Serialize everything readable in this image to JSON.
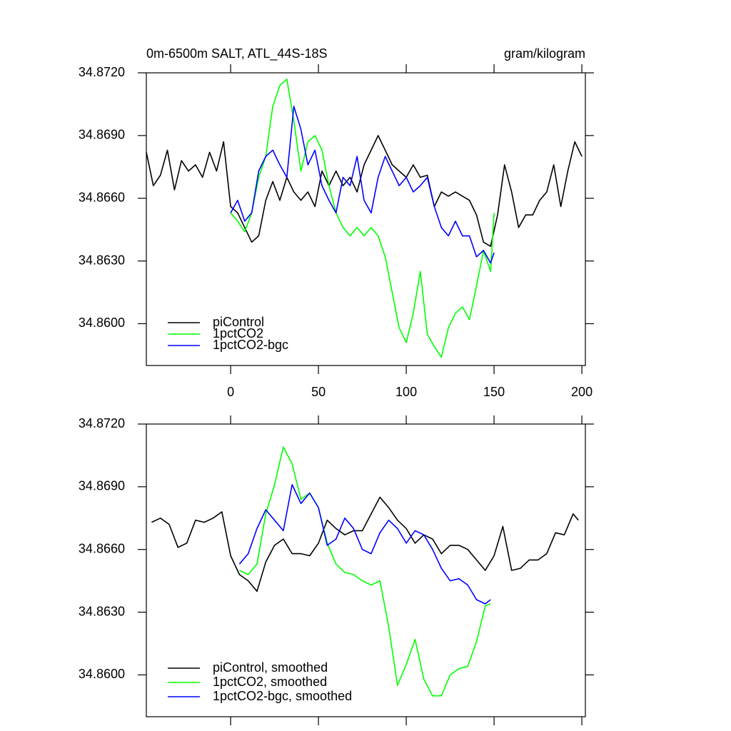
{
  "chart_data": [
    {
      "type": "line",
      "title": "0m-6500m SALT, ATL_44S-18S",
      "units": "gram/kilogram",
      "xlim": [
        -48,
        202
      ],
      "xticks": [
        0,
        50,
        100,
        150,
        200
      ],
      "ylim": [
        34.858,
        34.872
      ],
      "yticks": [
        {
          "value": 34.872,
          "label": "34.8720"
        },
        {
          "value": 34.869,
          "label": "34.8690"
        },
        {
          "value": 34.866,
          "label": "34.8660"
        },
        {
          "value": 34.863,
          "label": "34.8630"
        },
        {
          "value": 34.86,
          "label": "34.8600"
        }
      ],
      "legend": "lower left",
      "series": [
        {
          "name": "piControl",
          "color": "#000000",
          "x": [
            -48,
            -44,
            -40,
            -36,
            -32,
            -28,
            -24,
            -20,
            -16,
            -12,
            -8,
            -4,
            0,
            4,
            8,
            12,
            16,
            20,
            24,
            28,
            32,
            36,
            40,
            44,
            48,
            52,
            56,
            60,
            64,
            68,
            72,
            76,
            80,
            84,
            88,
            92,
            96,
            100,
            104,
            108,
            112,
            116,
            120,
            124,
            128,
            132,
            136,
            140,
            144,
            148,
            152,
            156,
            160,
            164,
            168,
            172,
            176,
            180,
            184,
            188,
            192,
            196,
            200
          ],
          "values": [
            34.8682,
            34.8666,
            34.8671,
            34.8683,
            34.8664,
            34.8678,
            34.8673,
            34.8676,
            34.867,
            34.8682,
            34.8673,
            34.8687,
            34.8656,
            34.8653,
            34.8646,
            34.8639,
            34.8642,
            34.8659,
            34.8668,
            34.8659,
            34.867,
            34.8663,
            34.8659,
            34.8663,
            34.8656,
            34.8673,
            34.8666,
            34.8673,
            34.8666,
            34.867,
            34.8663,
            34.8676,
            34.8683,
            34.869,
            34.8683,
            34.8676,
            34.8673,
            34.867,
            34.8676,
            34.867,
            34.8671,
            34.8656,
            34.8663,
            34.8661,
            34.8663,
            34.8661,
            34.8659,
            34.8652,
            34.8639,
            34.8637,
            34.8652,
            34.8676,
            34.8663,
            34.8646,
            34.8652,
            34.8652,
            34.8659,
            34.8663,
            34.8676,
            34.8656,
            34.8673,
            34.8687,
            34.868
          ]
        },
        {
          "name": "1pctCO2",
          "color": "#00ff00",
          "x": [
            0,
            4,
            8,
            12,
            16,
            20,
            24,
            28,
            32,
            36,
            40,
            44,
            48,
            52,
            56,
            60,
            64,
            68,
            72,
            76,
            80,
            84,
            88,
            92,
            96,
            100,
            104,
            108,
            112,
            116,
            120,
            124,
            128,
            132,
            136,
            140,
            144,
            148,
            150
          ],
          "values": [
            34.8653,
            34.8649,
            34.8644,
            34.8653,
            34.867,
            34.868,
            34.8704,
            34.8714,
            34.8717,
            34.8697,
            34.8673,
            34.8687,
            34.869,
            34.8683,
            34.8666,
            34.8653,
            34.8646,
            34.8642,
            34.8646,
            34.8642,
            34.8646,
            34.8642,
            34.8632,
            34.8615,
            34.8598,
            34.8591,
            34.8605,
            34.8625,
            34.8595,
            34.8589,
            34.8584,
            34.8598,
            34.8605,
            34.8608,
            34.8602,
            34.8618,
            34.8635,
            34.8625,
            34.8653
          ]
        },
        {
          "name": "1pctCO2-bgc",
          "color": "#0000ff",
          "x": [
            0,
            4,
            8,
            12,
            16,
            20,
            24,
            28,
            32,
            36,
            40,
            44,
            48,
            52,
            56,
            60,
            64,
            68,
            72,
            76,
            80,
            84,
            88,
            92,
            96,
            100,
            104,
            108,
            112,
            116,
            120,
            124,
            128,
            132,
            136,
            140,
            144,
            148,
            150
          ],
          "values": [
            34.8653,
            34.8659,
            34.8649,
            34.8653,
            34.8673,
            34.868,
            34.8683,
            34.8676,
            34.867,
            34.8704,
            34.8693,
            34.8676,
            34.8683,
            34.8666,
            34.8659,
            34.8653,
            34.867,
            34.8666,
            34.868,
            34.8659,
            34.8653,
            34.867,
            34.868,
            34.8673,
            34.8666,
            34.867,
            34.8663,
            34.8666,
            34.867,
            34.8656,
            34.8646,
            34.8642,
            34.8649,
            34.8642,
            34.8642,
            34.8632,
            34.8635,
            34.8629,
            34.8634
          ]
        }
      ]
    },
    {
      "type": "line",
      "xlim": [
        -48,
        202
      ],
      "xticks": [
        0,
        50,
        100,
        150,
        200
      ],
      "ylim": [
        34.858,
        34.872
      ],
      "yticks": [
        {
          "value": 34.872,
          "label": "34.8720"
        },
        {
          "value": 34.869,
          "label": "34.8690"
        },
        {
          "value": 34.866,
          "label": "34.8660"
        },
        {
          "value": 34.863,
          "label": "34.8630"
        },
        {
          "value": 34.86,
          "label": "34.8600"
        }
      ],
      "legend": "lower left",
      "series": [
        {
          "name": "piControl, smoothed",
          "color": "#000000",
          "x": [
            -45,
            -40,
            -35,
            -30,
            -25,
            -20,
            -15,
            -10,
            -5,
            0,
            5,
            10,
            15,
            20,
            25,
            30,
            35,
            40,
            45,
            50,
            55,
            60,
            65,
            70,
            75,
            80,
            85,
            90,
            95,
            100,
            105,
            110,
            115,
            120,
            125,
            130,
            135,
            140,
            145,
            150,
            155,
            160,
            165,
            170,
            175,
            180,
            185,
            190,
            195,
            198
          ],
          "values": [
            34.8673,
            34.8675,
            34.8672,
            34.8661,
            34.8663,
            34.8674,
            34.8673,
            34.8675,
            34.8678,
            34.8657,
            34.8648,
            34.8645,
            34.864,
            34.8654,
            34.8662,
            34.8665,
            34.8658,
            34.8658,
            34.8657,
            34.8663,
            34.8674,
            34.867,
            34.8667,
            34.8669,
            34.8669,
            34.8677,
            34.8685,
            34.868,
            34.8674,
            34.867,
            34.8663,
            34.8667,
            34.8665,
            34.8658,
            34.8662,
            34.8662,
            34.866,
            34.8655,
            34.865,
            34.8657,
            34.8671,
            34.865,
            34.8651,
            34.8655,
            34.8655,
            34.8658,
            34.8668,
            34.8667,
            34.8677,
            34.8674
          ]
        },
        {
          "name": "1pctCO2, smoothed",
          "color": "#00ff00",
          "x": [
            5,
            10,
            15,
            20,
            25,
            30,
            35,
            40,
            45,
            50,
            55,
            60,
            65,
            70,
            75,
            80,
            85,
            90,
            95,
            100,
            105,
            110,
            115,
            120,
            125,
            130,
            135,
            140,
            145,
            148
          ],
          "values": [
            34.865,
            34.8648,
            34.8653,
            34.8677,
            34.8691,
            34.8709,
            34.8701,
            34.8684,
            34.8687,
            34.868,
            34.8663,
            34.8653,
            34.8649,
            34.8648,
            34.8645,
            34.8643,
            34.8645,
            34.8623,
            34.8595,
            34.8605,
            34.8617,
            34.8598,
            34.859,
            34.859,
            34.86,
            34.8603,
            34.8604,
            34.8616,
            34.8633,
            34.8634
          ]
        },
        {
          "name": "1pctCO2-bgc, smoothed",
          "color": "#0000ff",
          "x": [
            5,
            10,
            15,
            20,
            25,
            30,
            35,
            40,
            45,
            50,
            55,
            60,
            65,
            70,
            75,
            80,
            85,
            90,
            95,
            100,
            105,
            110,
            115,
            120,
            125,
            130,
            135,
            140,
            145,
            148
          ],
          "values": [
            34.8653,
            34.8658,
            34.867,
            34.8679,
            34.8674,
            34.8669,
            34.8691,
            34.8682,
            34.8687,
            34.868,
            34.8662,
            34.8665,
            34.8675,
            34.867,
            34.866,
            34.8658,
            34.8668,
            34.8674,
            34.867,
            34.8663,
            34.8669,
            34.8667,
            34.866,
            34.8651,
            34.8645,
            34.8646,
            34.8643,
            34.8636,
            34.8634,
            34.8636
          ]
        }
      ]
    }
  ]
}
